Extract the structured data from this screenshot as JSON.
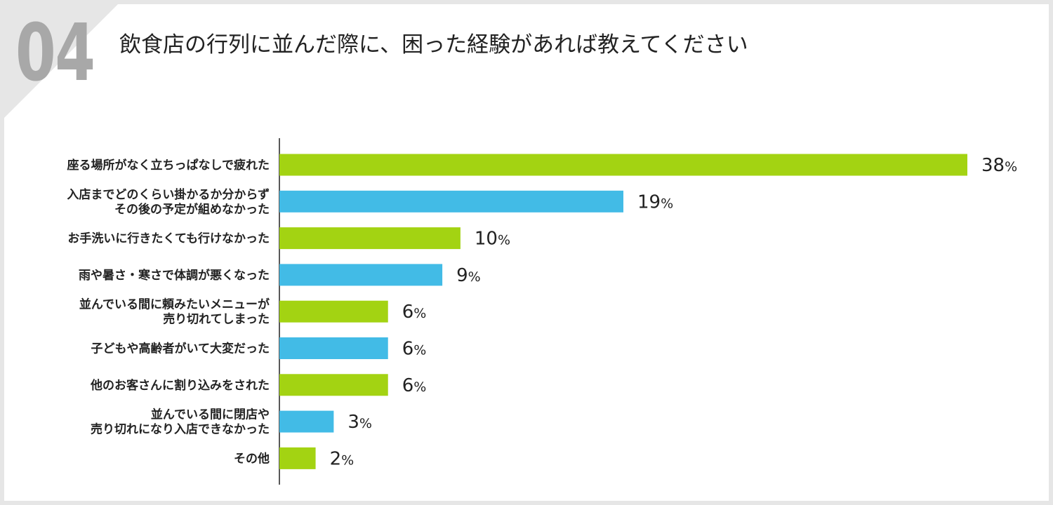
{
  "question_number": "04",
  "colors": {
    "green": "#a3d312",
    "blue": "#42bbe6",
    "axis": "#222222"
  },
  "chart_data": {
    "type": "bar",
    "orientation": "horizontal",
    "title": "飲食店の行列に並んだ際に、困った経験があれば教えてください",
    "xlabel": "",
    "ylabel": "",
    "xlim": [
      0,
      38
    ],
    "grid": false,
    "legend": "none",
    "value_suffix": "%",
    "categories": [
      [
        "座る場所がなく立ちっぱなしで疲れた"
      ],
      [
        "入店までどのくらい掛かるか分からず",
        "その後の予定が組めなかった"
      ],
      [
        "お手洗いに行きたくても行けなかった"
      ],
      [
        "雨や暑さ・寒さで体調が悪くなった"
      ],
      [
        "並んでいる間に頼みたいメニューが",
        "売り切れてしまった"
      ],
      [
        "子どもや高齢者がいて大変だった"
      ],
      [
        "他のお客さんに割り込みをされた"
      ],
      [
        "並んでいる間に閉店や",
        "売り切れになり入店できなかった"
      ],
      [
        "その他"
      ]
    ],
    "values": [
      38,
      19,
      10,
      9,
      6,
      6,
      6,
      3,
      2
    ],
    "bar_colors": [
      "#a3d312",
      "#42bbe6",
      "#a3d312",
      "#42bbe6",
      "#a3d312",
      "#42bbe6",
      "#a3d312",
      "#42bbe6",
      "#a3d312"
    ]
  }
}
